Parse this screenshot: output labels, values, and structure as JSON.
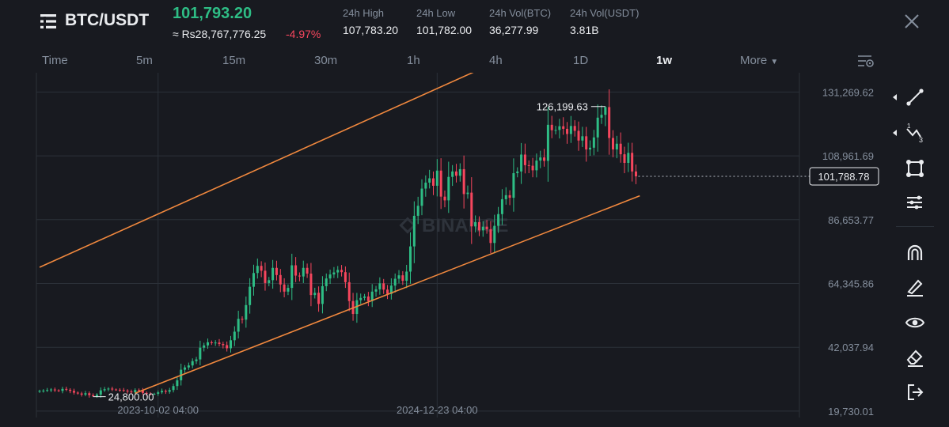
{
  "header": {
    "pair": "BTC/USDT",
    "price": "101,793.20",
    "price_approx": "≈ Rs28,767,776.25",
    "change_pct": "-4.97%",
    "stats": [
      {
        "label": "24h High",
        "value": "107,783.20"
      },
      {
        "label": "24h Low",
        "value": "101,782.00"
      },
      {
        "label": "24h Vol(BTC)",
        "value": "36,277.99"
      },
      {
        "label": "24h Vol(USDT)",
        "value": "3.81B"
      }
    ]
  },
  "tabs": [
    {
      "label": "Time"
    },
    {
      "label": "5m"
    },
    {
      "label": "15m"
    },
    {
      "label": "30m"
    },
    {
      "label": "1h"
    },
    {
      "label": "4h"
    },
    {
      "label": "1D"
    },
    {
      "label": "1w",
      "active": true
    },
    {
      "label": "More"
    }
  ],
  "colors": {
    "up": "#2ebd85",
    "down": "#f6465d",
    "channel": "#f0883e",
    "background": "#181a20",
    "grid": "#2b3139",
    "axis_text": "#848e9c"
  },
  "icons": [
    "menu-icon",
    "close-icon",
    "chart-settings-icon",
    "trend-line-icon",
    "fib-icon",
    "rectangle-icon",
    "alignment-icon",
    "magnet-icon",
    "pencil-icon",
    "eye-icon",
    "eraser-icon",
    "exit-icon"
  ],
  "chart_data": {
    "type": "candlestick",
    "pair": "BTC/USDT",
    "interval": "1w",
    "watermark": "BINANCE",
    "yaxis_ticks": [
      "131,269.62",
      "108,961.69",
      "86,653.77",
      "64,345.86",
      "42,037.94",
      "19,730.01"
    ],
    "ylim": [
      17500,
      138000
    ],
    "xaxis_ticks": [
      "2023-10-02 04:00",
      "2024-12-23 04:00"
    ],
    "last_price_label": "101,788.78",
    "high_annotation": "126,199.63",
    "low_annotation": "24,800.00",
    "closes": [
      26800,
      26900,
      27100,
      27300,
      27000,
      26800,
      27500,
      27200,
      26800,
      26200,
      25900,
      25500,
      26000,
      25300,
      24900,
      25500,
      27000,
      27400,
      27600,
      27300,
      27200,
      27100,
      26900,
      26600,
      26300,
      27100,
      26900,
      26100,
      25800,
      25700,
      25800,
      26300,
      26800,
      26500,
      27100,
      28500,
      30500,
      34200,
      35000,
      35700,
      37200,
      37800,
      41900,
      42700,
      43800,
      43500,
      43700,
      43200,
      42800,
      41700,
      44500,
      47500,
      52000,
      51700,
      56800,
      63200,
      68000,
      70500,
      68800,
      64500,
      65500,
      69800,
      67300,
      64000,
      61500,
      62800,
      70700,
      67100,
      66800,
      69800,
      67800,
      60300,
      61100,
      57200,
      63400,
      66100,
      67500,
      68200,
      69100,
      68300,
      64800,
      58200,
      53700,
      58500,
      59300,
      59800,
      58200,
      61500,
      62300,
      64400,
      62200,
      60700,
      63600,
      66000,
      67200,
      65300,
      68500,
      77300,
      88000,
      91500,
      97500,
      99600,
      101100,
      98500,
      103800,
      94700,
      93400,
      101600,
      103500,
      102000,
      104300,
      95600,
      96100,
      84300,
      85800,
      82900,
      84200,
      83300,
      78500,
      84500,
      88600,
      93800,
      95200,
      94300,
      102900,
      103500,
      109400,
      105700,
      105500,
      103900,
      107300,
      108400,
      107200,
      119800,
      117900,
      118000,
      119300,
      118400,
      116600,
      119400,
      117700,
      114300,
      115800,
      111200,
      111800,
      115400,
      122300,
      123300,
      126000,
      115200,
      111200,
      113200,
      109500,
      106500,
      110000,
      103500,
      101793
    ],
    "line_series": [
      {
        "name": "channel-upper",
        "x": [
          0,
          114
        ],
        "y": [
          70000,
          138500
        ]
      },
      {
        "name": "channel-lower",
        "x": [
          25,
          157
        ],
        "y": [
          26000,
          95000
        ]
      }
    ]
  }
}
